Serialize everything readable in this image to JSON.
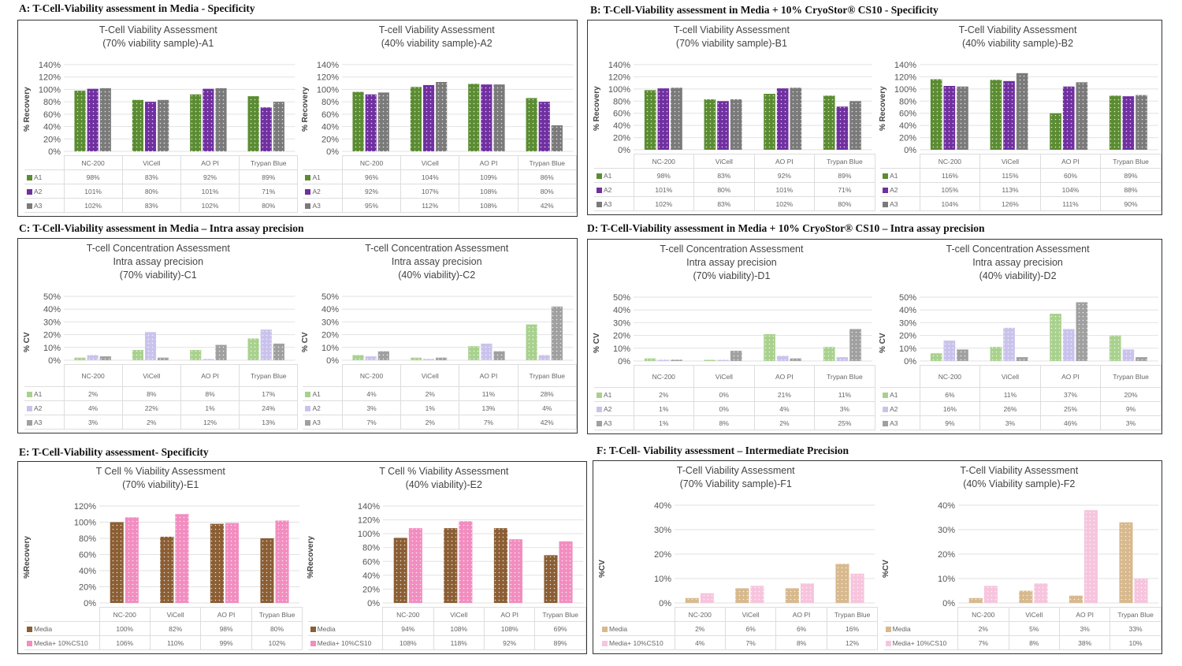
{
  "panels": [
    {
      "label": "A: T-Cell-Viability  assessment in Media  - Specificity",
      "charts": [
        {
          "title": [
            "T-Cell Viability Assessment",
            "(70% viability  sample)-A1"
          ],
          "ylabel": "% Recovery",
          "ymax": 140,
          "ystep": 20,
          "categories": [
            "NC-200",
            "ViCell",
            "AO PI",
            "Trypan Blue"
          ],
          "series": [
            {
              "name": "A1",
              "color": "#5b8c32",
              "values": [
                98,
                83,
                92,
                89
              ]
            },
            {
              "name": "A2",
              "color": "#7030a0",
              "values": [
                101,
                80,
                101,
                71
              ]
            },
            {
              "name": "A3",
              "color": "#7a7a7a",
              "values": [
                102,
                83,
                102,
                80
              ]
            }
          ]
        },
        {
          "title": [
            "T-cell Viability Assessment",
            "(40% viability  sample)-A2"
          ],
          "ylabel": "% Recovery",
          "ymax": 140,
          "ystep": 20,
          "categories": [
            "NC-200",
            "ViCell",
            "AO PI",
            "Trypan Blue"
          ],
          "series": [
            {
              "name": "A1",
              "color": "#5b8c32",
              "values": [
                96,
                104,
                109,
                86
              ]
            },
            {
              "name": "A2",
              "color": "#7030a0",
              "values": [
                92,
                107,
                108,
                80
              ]
            },
            {
              "name": "A3",
              "color": "#7a7a7a",
              "values": [
                95,
                112,
                108,
                42
              ]
            }
          ]
        }
      ]
    },
    {
      "label": "B: T-Cell-Viability  assessment in Media  + 10% CryoStor® CS10 - Specificity",
      "charts": [
        {
          "title": [
            "T-cell Viability Assessment",
            "(70% viability  sample)-B1"
          ],
          "ylabel": "% Recovery",
          "ymax": 140,
          "ystep": 20,
          "categories": [
            "NC-200",
            "ViCell",
            "AO PI",
            "Trypan Blue"
          ],
          "series": [
            {
              "name": "A1",
              "color": "#5b8c32",
              "values": [
                98,
                83,
                92,
                89
              ]
            },
            {
              "name": "A2",
              "color": "#7030a0",
              "values": [
                101,
                80,
                101,
                71
              ]
            },
            {
              "name": "A3",
              "color": "#7a7a7a",
              "values": [
                102,
                83,
                102,
                80
              ]
            }
          ]
        },
        {
          "title": [
            "T-Cell Viability Assessment",
            "(40% viability  sample)-B2"
          ],
          "ylabel": "% Recovery",
          "ymax": 140,
          "ystep": 20,
          "categories": [
            "NC-200",
            "ViCell",
            "AO PI",
            "Trypan Blue"
          ],
          "series": [
            {
              "name": "A1",
              "color": "#5b8c32",
              "values": [
                116,
                115,
                60,
                89
              ]
            },
            {
              "name": "A2",
              "color": "#7030a0",
              "values": [
                105,
                113,
                104,
                88
              ]
            },
            {
              "name": "A3",
              "color": "#7a7a7a",
              "values": [
                104,
                126,
                111,
                90
              ]
            }
          ]
        }
      ]
    },
    {
      "label": "C: T-Cell-Viability  assessment in Media  – Intra  assay precision",
      "charts": [
        {
          "title": [
            "T-cell Concentration Assessment",
            "Intra assay precision",
            "(70% viability)-C1"
          ],
          "ylabel": "% CV",
          "ymax": 50,
          "ystep": 10,
          "categories": [
            "NC-200",
            "ViCell",
            "AO PI",
            "Trypan Blue"
          ],
          "series": [
            {
              "name": "A1",
              "color": "#a9d18e",
              "values": [
                2,
                8,
                8,
                17
              ]
            },
            {
              "name": "A2",
              "color": "#c9c3ec",
              "values": [
                4,
                22,
                1,
                24
              ]
            },
            {
              "name": "A3",
              "color": "#a0a0a0",
              "values": [
                3,
                2,
                12,
                13
              ]
            }
          ]
        },
        {
          "title": [
            "T-cell Concentration Assessment",
            "Intra assay precision",
            "(40% viability)-C2"
          ],
          "ylabel": "% CV",
          "ymax": 50,
          "ystep": 10,
          "categories": [
            "NC-200",
            "ViCell",
            "AO PI",
            "Trypan Blue"
          ],
          "series": [
            {
              "name": "A1",
              "color": "#a9d18e",
              "values": [
                4,
                2,
                11,
                28
              ]
            },
            {
              "name": "A2",
              "color": "#c9c3ec",
              "values": [
                3,
                1,
                13,
                4
              ]
            },
            {
              "name": "A3",
              "color": "#a0a0a0",
              "values": [
                7,
                2,
                7,
                42
              ]
            }
          ]
        }
      ]
    },
    {
      "label": "D: T-Cell-Viability  assessment in Media  + 10% CryoStor® CS10 – Intra  assay precision",
      "charts": [
        {
          "title": [
            "T-cell Concentration Assessment",
            "Intra assay precision",
            "(70% viability)-D1"
          ],
          "ylabel": "% CV",
          "ymax": 50,
          "ystep": 10,
          "categories": [
            "NC-200",
            "ViCell",
            "AO PI",
            "Trypan Blue"
          ],
          "series": [
            {
              "name": "A1",
              "color": "#a9d18e",
              "values": [
                2,
                0,
                21,
                11
              ]
            },
            {
              "name": "A2",
              "color": "#c9c3ec",
              "values": [
                1,
                0,
                4,
                3
              ]
            },
            {
              "name": "A3",
              "color": "#a0a0a0",
              "values": [
                1,
                8,
                2,
                25
              ]
            }
          ]
        },
        {
          "title": [
            "T-cell Concentration Assessment",
            "Intra assay precision",
            "(40% viability)-D2"
          ],
          "ylabel": "% CV",
          "ymax": 50,
          "ystep": 10,
          "categories": [
            "NC-200",
            "ViCell",
            "AO PI",
            "Trypan Blue"
          ],
          "series": [
            {
              "name": "A1",
              "color": "#a9d18e",
              "values": [
                6,
                11,
                37,
                20
              ]
            },
            {
              "name": "A2",
              "color": "#c9c3ec",
              "values": [
                16,
                26,
                25,
                9
              ]
            },
            {
              "name": "A3",
              "color": "#a0a0a0",
              "values": [
                9,
                3,
                46,
                3
              ]
            }
          ]
        }
      ]
    },
    {
      "label": "E:  T-Cell-Viability  assessment- Specificity",
      "charts": [
        {
          "title": [
            "T Cell % Viability Assessment",
            "(70% viability)-E1"
          ],
          "ylabel": "%Recovery",
          "ymax": 120,
          "ystep": 20,
          "categories": [
            "NC-200",
            "ViCell",
            "AO PI",
            "Trypan Blue"
          ],
          "series": [
            {
              "name": "Media",
              "color": "#8b5e34",
              "values": [
                100,
                82,
                98,
                80
              ]
            },
            {
              "name": "Media+ 10%CS10",
              "color": "#f28dc0",
              "values": [
                106,
                110,
                99,
                102
              ]
            }
          ]
        },
        {
          "title": [
            "T Cell % Viability Assessment",
            "(40% viability)-E2"
          ],
          "ylabel": "%Recovery",
          "ymax": 140,
          "ystep": 20,
          "categories": [
            "NC-200",
            "ViCell",
            "AO PI",
            "Trypan Blue"
          ],
          "series": [
            {
              "name": "Media",
              "color": "#8b5e34",
              "values": [
                94,
                108,
                108,
                69
              ]
            },
            {
              "name": "Media+ 10%CS10",
              "color": "#f28dc0",
              "values": [
                108,
                118,
                92,
                89
              ]
            }
          ]
        }
      ]
    },
    {
      "label": "F:  T-Cell-  Viability  assessment – Intermediate  Precision",
      "charts": [
        {
          "title": [
            "T-Cell Viability Assessment",
            "(70% Viability sample)-F1"
          ],
          "ylabel": "%CV",
          "ymax": 40,
          "ystep": 10,
          "categories": [
            "NC-200",
            "ViCell",
            "AO PI",
            "Trypan Blue"
          ],
          "series": [
            {
              "name": "Media",
              "color": "#d8b98e",
              "values": [
                2,
                6,
                6,
                16
              ]
            },
            {
              "name": "Media+ 10%CS10",
              "color": "#f6c5dd",
              "values": [
                4,
                7,
                8,
                12
              ]
            }
          ]
        },
        {
          "title": [
            "T-Cell Viability Assessment",
            "(40% Viability sample)-F2"
          ],
          "ylabel": "%CV",
          "ymax": 40,
          "ystep": 10,
          "categories": [
            "NC-200",
            "ViCell",
            "AO PI",
            "Trypan Blue"
          ],
          "series": [
            {
              "name": "Media",
              "color": "#d8b98e",
              "values": [
                2,
                5,
                3,
                33
              ]
            },
            {
              "name": "Media+ 10%CS10",
              "color": "#f6c5dd",
              "values": [
                7,
                8,
                38,
                10
              ]
            }
          ]
        }
      ]
    }
  ]
}
